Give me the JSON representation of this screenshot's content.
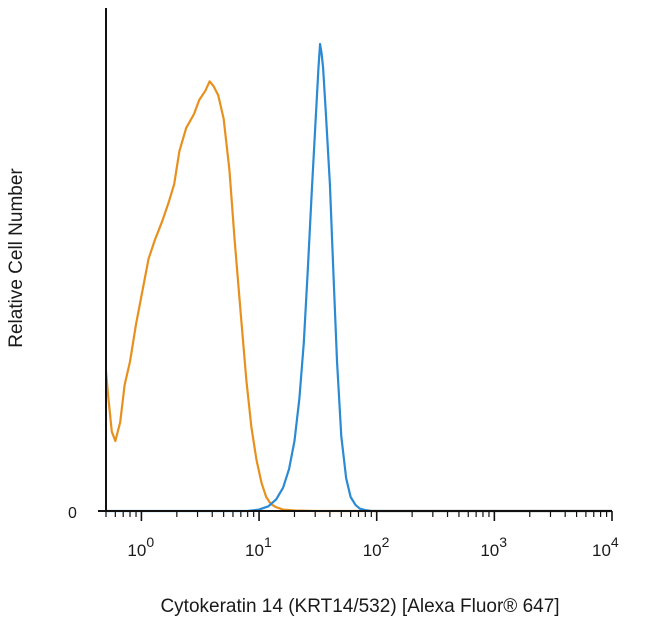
{
  "chart_data": {
    "type": "line",
    "title": "",
    "xlabel": "Cytokeratin 14 (KRT14/532) [Alexa Fluor® 647]",
    "ylabel": "Relative Cell Number",
    "x_scale": "log",
    "xlim": [
      0.5,
      10000
    ],
    "ylim": [
      0,
      100
    ],
    "y_tick_labels": [
      "0"
    ],
    "x_ticks": [
      {
        "value": 1,
        "base": "10",
        "exp": "0"
      },
      {
        "value": 10,
        "base": "10",
        "exp": "1"
      },
      {
        "value": 100,
        "base": "10",
        "exp": "2"
      },
      {
        "value": 1000,
        "base": "10",
        "exp": "3"
      },
      {
        "value": 10000,
        "base": "10",
        "exp": "4"
      }
    ],
    "grid": false,
    "legend": "none",
    "series": [
      {
        "color": "#e8901e",
        "x": [
          0.5,
          0.52,
          0.56,
          0.6,
          0.66,
          0.72,
          0.8,
          0.9,
          1.0,
          1.15,
          1.3,
          1.5,
          1.7,
          1.9,
          2.1,
          2.4,
          2.8,
          3.1,
          3.5,
          3.8,
          4.1,
          4.5,
          5.0,
          5.6,
          6.2,
          7.0,
          7.8,
          8.6,
          9.5,
          10.5,
          11.5,
          12.6,
          14,
          16,
          20,
          30,
          100,
          10000
        ],
        "y": [
          30,
          25,
          17,
          15,
          19,
          27,
          32,
          40,
          46,
          54,
          58,
          62,
          66,
          70,
          77,
          82,
          85,
          88,
          90,
          92,
          91,
          89,
          84,
          73,
          58,
          42,
          28,
          18,
          11,
          6,
          3,
          1.5,
          0.8,
          0.3,
          0.1,
          0,
          0,
          0
        ]
      },
      {
        "color": "#2a8ad4",
        "x": [
          0.5,
          8,
          10,
          12,
          14,
          16,
          18,
          20,
          22,
          24,
          26,
          28,
          30,
          32,
          33,
          34,
          35,
          37,
          40,
          43,
          46,
          50,
          55,
          60,
          66,
          72,
          80,
          90,
          100,
          10000
        ],
        "y": [
          0,
          0,
          0.3,
          1,
          2.5,
          5,
          9,
          15,
          24,
          36,
          52,
          68,
          82,
          95,
          100,
          98,
          95,
          85,
          70,
          50,
          32,
          16,
          7,
          3,
          1.3,
          0.5,
          0.2,
          0,
          0,
          0
        ]
      }
    ]
  }
}
